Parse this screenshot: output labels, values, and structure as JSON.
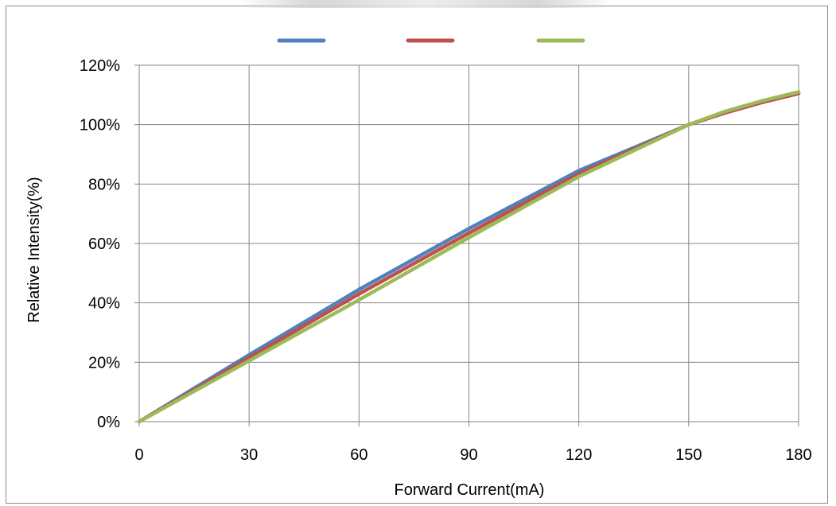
{
  "chart_data": {
    "type": "line",
    "title": "",
    "xlabel": "Forward Current(mA)",
    "ylabel": "Relative Intensity(%)",
    "xlim": [
      0,
      180
    ],
    "ylim": [
      0,
      120
    ],
    "xticks": [
      "0",
      "30",
      "60",
      "90",
      "120",
      "150",
      "180"
    ],
    "yticks": [
      "0%",
      "20%",
      "40%",
      "60%",
      "80%",
      "100%",
      "120%"
    ],
    "grid": true,
    "legend_position": "top",
    "series": [
      {
        "color": "#4f81bd",
        "x": [
          0,
          30,
          60,
          90,
          120,
          150,
          160,
          170,
          180
        ],
        "y": [
          0,
          22.5,
          44.5,
          65,
          84.5,
          100,
          104,
          107.5,
          110.5
        ]
      },
      {
        "color": "#c0504d",
        "x": [
          0,
          30,
          60,
          90,
          120,
          150,
          160,
          170,
          180
        ],
        "y": [
          0,
          21.5,
          43,
          63.5,
          83.5,
          100,
          104,
          107.5,
          110.5
        ]
      },
      {
        "color": "#9bbb59",
        "x": [
          0,
          30,
          60,
          90,
          120,
          150,
          160,
          170,
          180
        ],
        "y": [
          0,
          20.5,
          41,
          62,
          82.5,
          100,
          104.5,
          108,
          111
        ]
      }
    ]
  }
}
